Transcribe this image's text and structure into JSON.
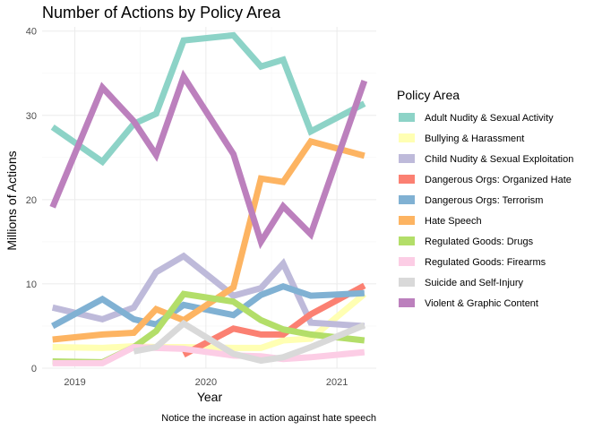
{
  "chart_data": {
    "type": "line",
    "title": "Number of Actions by Policy Area",
    "xlabel": "Year",
    "ylabel": "Millions of Actions",
    "caption": "Notice the increase in action against hate speech",
    "legend_title": "Policy Area",
    "legend_position": "right",
    "grid": true,
    "xlim": [
      2018.75,
      2021.3
    ],
    "ylim": [
      0,
      40.5
    ],
    "x_ticks": [
      2019,
      2020,
      2021
    ],
    "y_ticks": [
      0,
      10,
      20,
      30,
      40
    ],
    "x_tick_labels": [
      "2019",
      "2020",
      "2021"
    ],
    "y_tick_labels": [
      "0",
      "10",
      "20",
      "30",
      "40"
    ],
    "x": [
      2018.83,
      2019.21,
      2019.45,
      2019.62,
      2019.83,
      2020.21,
      2020.42,
      2020.59,
      2020.8,
      2021.21
    ],
    "series": [
      {
        "name": "Adult Nudity & Sexual Activity",
        "color": "#8DD3C7",
        "values": [
          28.6,
          24.5,
          29.0,
          30.2,
          38.9,
          39.5,
          35.8,
          36.6,
          28.1,
          31.4
        ]
      },
      {
        "name": "Bullying & Harassment",
        "color": "#FFFFB3",
        "values": [
          2.5,
          2.4,
          2.6,
          2.5,
          2.5,
          2.4,
          2.4,
          3.3,
          3.5,
          8.8
        ]
      },
      {
        "name": "Child Nudity & Sexual Exploitation",
        "color": "#BEBADA",
        "values": [
          7.2,
          5.8,
          7.2,
          11.4,
          13.3,
          8.6,
          9.5,
          12.4,
          5.4,
          5.0
        ]
      },
      {
        "name": "Dangerous Orgs: Organized Hate",
        "color": "#FB8072",
        "values": [
          null,
          null,
          null,
          null,
          1.6,
          4.7,
          4.0,
          4.0,
          6.4,
          9.8
        ]
      },
      {
        "name": "Dangerous Orgs: Terrorism",
        "color": "#80B1D3",
        "values": [
          5.0,
          8.2,
          5.8,
          5.2,
          7.5,
          6.3,
          8.7,
          9.7,
          8.6,
          8.9
        ]
      },
      {
        "name": "Hate Speech",
        "color": "#FDB462",
        "values": [
          3.4,
          4.0,
          4.2,
          7.0,
          5.7,
          9.6,
          22.5,
          22.1,
          26.9,
          25.2
        ]
      },
      {
        "name": "Regulated Goods: Drugs",
        "color": "#B3DE69",
        "values": [
          0.8,
          0.7,
          2.5,
          4.4,
          8.8,
          7.9,
          5.7,
          4.6,
          4.0,
          3.3
        ]
      },
      {
        "name": "Regulated Goods: Firearms",
        "color": "#FCCDE5",
        "values": [
          0.6,
          0.6,
          2.5,
          2.4,
          2.3,
          1.5,
          1.4,
          1.1,
          1.3,
          1.9
        ]
      },
      {
        "name": "Suicide and Self-Injury",
        "color": "#D9D9D9",
        "values": [
          null,
          null,
          2.0,
          2.5,
          5.3,
          1.7,
          0.9,
          1.3,
          2.5,
          5.1
        ]
      },
      {
        "name": "Violent & Graphic Content",
        "color": "#BC80BD",
        "values": [
          19.1,
          33.3,
          29.3,
          25.3,
          34.6,
          25.4,
          15.0,
          19.2,
          15.9,
          34.1
        ]
      }
    ]
  }
}
